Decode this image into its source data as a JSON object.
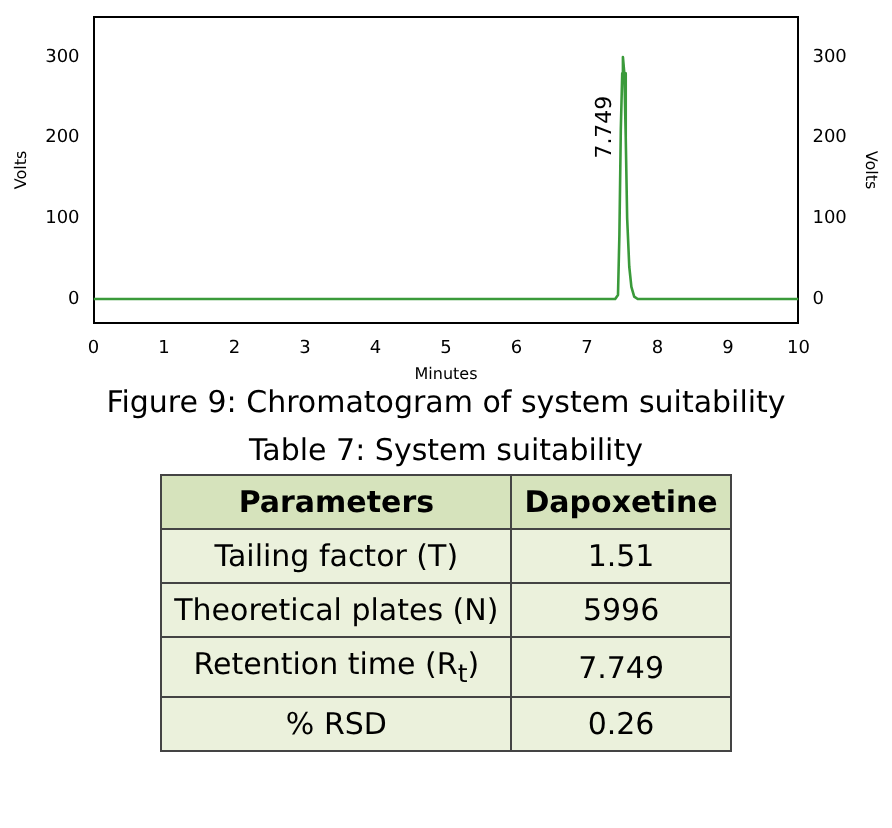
{
  "chart_data": [
    {
      "type": "line",
      "title": "Figure 9: Chromatogram of system suitability",
      "xlabel": "Minutes",
      "ylabel": "Volts",
      "y2label": "Volts",
      "color": "#3a9a3a",
      "marker": "none",
      "legend": false,
      "grid": false,
      "x": [
        0,
        7.4,
        7.44,
        7.46,
        7.48,
        7.5,
        7.51,
        7.53,
        7.55,
        7.57,
        7.6,
        7.63,
        7.67,
        7.72,
        10
      ],
      "values": [
        0,
        0,
        5,
        80,
        210,
        280,
        300,
        280,
        200,
        100,
        40,
        15,
        3,
        0,
        0
      ],
      "xlim": [
        0,
        10
      ],
      "xticks": [
        0,
        1,
        2,
        3,
        4,
        5,
        6,
        7,
        8,
        9,
        10
      ],
      "ylim": [
        -30,
        350
      ],
      "yticks": [
        0,
        100,
        200,
        300
      ],
      "y2lim": [
        -30,
        350
      ],
      "y2ticks": [
        0,
        100,
        200,
        300
      ],
      "annotations": [
        {
          "text": "7.749",
          "x": 7.51,
          "y": 300
        }
      ]
    },
    {
      "type": "other",
      "title": "Table 7: System suitability",
      "annotations": [
        "Parameters",
        "Dapoxetine",
        "Tailing factor (T)",
        "1.51",
        "Theoretical plates (N)",
        "5996",
        "Retention time (R$_{t}$)",
        "7.749",
        "% RSD",
        "0.26"
      ]
    }
  ]
}
